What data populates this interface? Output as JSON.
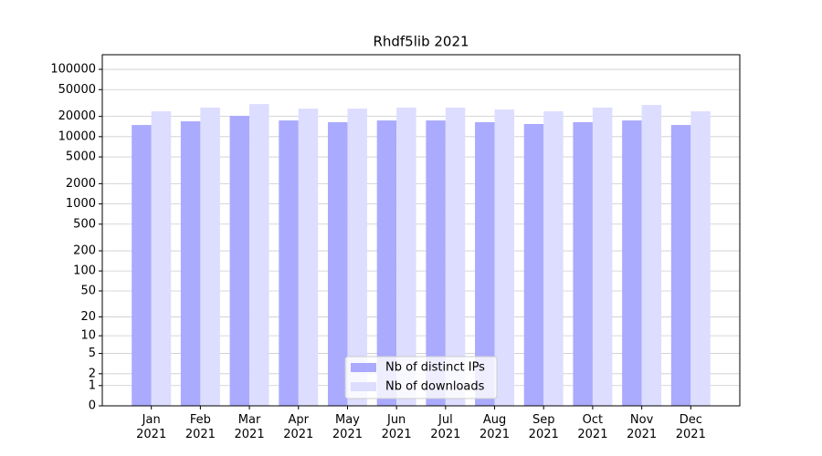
{
  "chart_data": {
    "type": "bar",
    "title": "Rhdf5lib 2021",
    "categories": [
      "Jan\n2021",
      "Feb\n2021",
      "Mar\n2021",
      "Apr\n2021",
      "May\n2021",
      "Jun\n2021",
      "Jul\n2021",
      "Aug\n2021",
      "Sep\n2021",
      "Oct\n2021",
      "Nov\n2021",
      "Dec\n2021"
    ],
    "series": [
      {
        "name": "Nb of distinct IPs",
        "color": "#aaaaff",
        "values": [
          14900,
          16900,
          20400,
          17400,
          16400,
          17400,
          17400,
          16400,
          15400,
          16400,
          17400,
          14900
        ]
      },
      {
        "name": "Nb of downloads",
        "color": "#ddddff",
        "values": [
          23800,
          27000,
          30500,
          26100,
          26100,
          27000,
          27000,
          25300,
          23800,
          27000,
          29600,
          23800
        ]
      }
    ],
    "yscale": "log1p",
    "ylim": [
      0,
      165000
    ],
    "yticks": [
      0,
      1,
      2,
      5,
      10,
      20,
      50,
      100,
      200,
      500,
      1000,
      2000,
      5000,
      10000,
      20000,
      50000,
      100000
    ],
    "grid": true,
    "legend": "lower center"
  }
}
